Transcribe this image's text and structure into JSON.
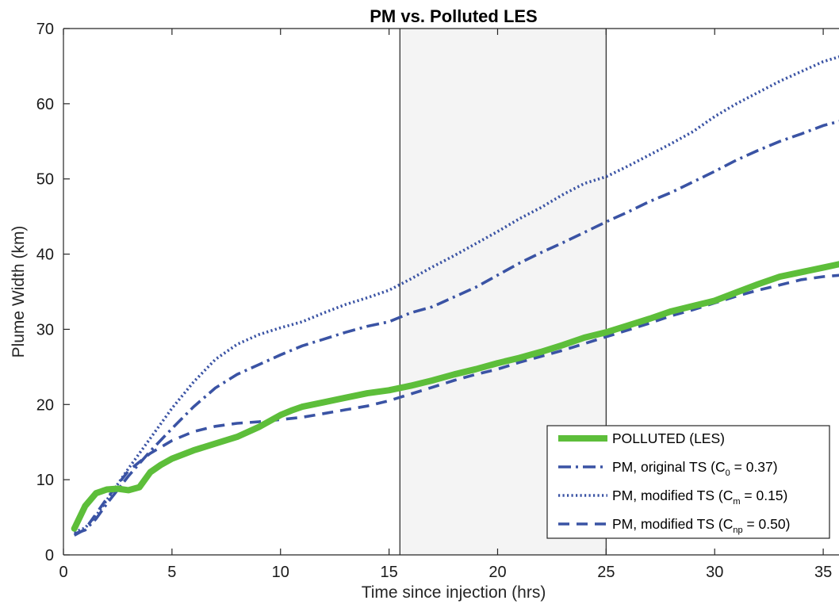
{
  "chart_data": {
    "type": "line",
    "title": "PM vs. Polluted LES",
    "xlabel": "Time since injection (hrs)",
    "ylabel": "Plume Width (km)",
    "xlim": [
      0,
      35.8
    ],
    "ylim": [
      0,
      70
    ],
    "xticks": [
      0,
      5,
      10,
      15,
      20,
      25,
      30,
      35
    ],
    "yticks": [
      0,
      10,
      20,
      30,
      40,
      50,
      60,
      70
    ],
    "shaded_region": [
      15.5,
      25
    ],
    "vlines": [
      15.5,
      25
    ],
    "grid": false,
    "legend_position": "lower-right",
    "series": [
      {
        "name": "POLLUTED (LES)",
        "color": "#5dbe3a",
        "style": "solid",
        "x": [
          0.5,
          1.0,
          1.5,
          2.0,
          2.5,
          3.0,
          3.5,
          4.0,
          4.5,
          5,
          6,
          7,
          8,
          9,
          10,
          10.5,
          11,
          12,
          13,
          14,
          15,
          16,
          17,
          18,
          19,
          20,
          21,
          22,
          23,
          24,
          25,
          26,
          27,
          28,
          29,
          30,
          31,
          32,
          33,
          34,
          35,
          35.8
        ],
        "y": [
          3.5,
          6.5,
          8.2,
          8.7,
          8.8,
          8.6,
          9.0,
          11.0,
          12.0,
          12.8,
          13.9,
          14.8,
          15.7,
          17.0,
          18.6,
          19.2,
          19.7,
          20.3,
          20.9,
          21.5,
          21.9,
          22.5,
          23.2,
          24.0,
          24.7,
          25.5,
          26.2,
          27.0,
          27.9,
          28.9,
          29.6,
          30.5,
          31.4,
          32.4,
          33.1,
          33.8,
          34.9,
          36.0,
          37.0,
          37.6,
          38.2,
          38.7
        ]
      },
      {
        "name": "PM, original TS (C₀ = 0.37)",
        "color": "#3a53a4",
        "style": "dashdot",
        "x": [
          0.5,
          1,
          1.5,
          2,
          3,
          4,
          5,
          6,
          7,
          8,
          9,
          10,
          11,
          12,
          13,
          14,
          15,
          16,
          17,
          18,
          19,
          20,
          21,
          22,
          23,
          24,
          25,
          26,
          27,
          28,
          29,
          30,
          31,
          32,
          33,
          34,
          35,
          35.8
        ],
        "y": [
          2.8,
          3.3,
          4.8,
          6.8,
          10.5,
          13.8,
          16.8,
          19.7,
          22.2,
          24.0,
          25.3,
          26.6,
          27.8,
          28.7,
          29.6,
          30.4,
          31.0,
          32.2,
          33.0,
          34.3,
          35.6,
          37.2,
          38.8,
          40.2,
          41.5,
          42.9,
          44.3,
          45.6,
          47.0,
          48.2,
          49.6,
          51.0,
          52.5,
          53.8,
          55.0,
          56.0,
          57.1,
          57.7
        ]
      },
      {
        "name": "PM, modified TS (Cₘ = 0.15)",
        "color": "#3a53a4",
        "style": "dotted",
        "x": [
          0.5,
          1,
          1.5,
          2,
          3,
          4,
          5,
          6,
          7,
          8,
          9,
          10,
          11,
          12,
          13,
          14,
          15,
          16,
          17,
          18,
          19,
          20,
          21,
          22,
          23,
          24,
          25,
          26,
          27,
          28,
          29,
          30,
          31,
          32,
          33,
          34,
          35,
          35.8
        ],
        "y": [
          3.0,
          3.6,
          5.2,
          7.3,
          11.5,
          15.5,
          19.5,
          23.0,
          26.0,
          28.0,
          29.3,
          30.2,
          31.0,
          32.2,
          33.3,
          34.2,
          35.2,
          36.7,
          38.3,
          39.8,
          41.4,
          43.0,
          44.7,
          46.2,
          47.9,
          49.4,
          50.3,
          51.7,
          53.2,
          54.7,
          56.3,
          58.3,
          60.0,
          61.5,
          63.0,
          64.3,
          65.6,
          66.3
        ]
      },
      {
        "name": "PM, modified TS (Cₙₚ = 0.50)",
        "color": "#3a53a4",
        "style": "dashed",
        "x": [
          0.5,
          1,
          2,
          3,
          4,
          5,
          6,
          7,
          8,
          9,
          10,
          11,
          12,
          13,
          14,
          15,
          16,
          17,
          18,
          19,
          20,
          21,
          22,
          23,
          24,
          25,
          26,
          27,
          28,
          29,
          30,
          31,
          32,
          33,
          34,
          35,
          35.8
        ],
        "y": [
          2.6,
          3.4,
          7.5,
          11.2,
          13.5,
          15.2,
          16.4,
          17.1,
          17.5,
          17.7,
          18.0,
          18.3,
          18.8,
          19.3,
          19.8,
          20.5,
          21.4,
          22.3,
          23.2,
          24.0,
          24.7,
          25.6,
          26.4,
          27.2,
          28.1,
          29.0,
          29.9,
          30.8,
          31.8,
          32.6,
          33.5,
          34.4,
          35.2,
          35.9,
          36.6,
          37.0,
          37.2
        ]
      }
    ],
    "legend_entries": [
      {
        "main": "POLLUTED (LES)",
        "sub": "",
        "tail": ""
      },
      {
        "main": "PM, original TS (C",
        "sub": "0",
        "tail": " = 0.37)"
      },
      {
        "main": "PM, modified TS (C",
        "sub": "m",
        "tail": " = 0.15)"
      },
      {
        "main": "PM, modified TS (C",
        "sub": "np",
        "tail": " = 0.50)"
      }
    ]
  }
}
